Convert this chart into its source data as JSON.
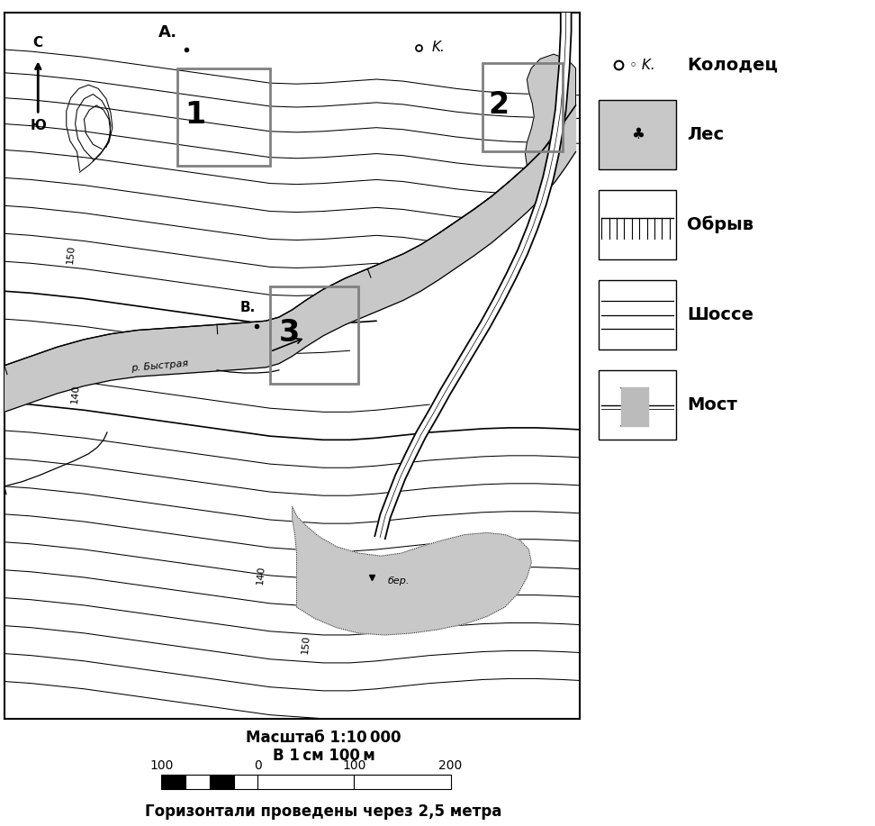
{
  "bg": "#ffffff",
  "cc": "#000000",
  "rc": "#c8c8c8",
  "fc": "#c8c8c8",
  "scale_text1": "Масштаб 1:10 000",
  "scale_text2": "В 1 см 100 м",
  "scale_bottom": "Горизонтали проведены через 2,5 метра",
  "legend_items": [
    {
      "label": "Колодец"
    },
    {
      "label": "Лес"
    },
    {
      "label": "Обрыв"
    },
    {
      "label": "Шоссе"
    },
    {
      "label": "Мост"
    }
  ],
  "label_A": "A.",
  "label_B": "B.",
  "label_K": "K.",
  "label_river": "р. Быстрая",
  "label_ber": "бер.",
  "label_north": "С",
  "label_south": "Ю",
  "box1_label": "1",
  "box2_label": "2",
  "box3_label": "3"
}
